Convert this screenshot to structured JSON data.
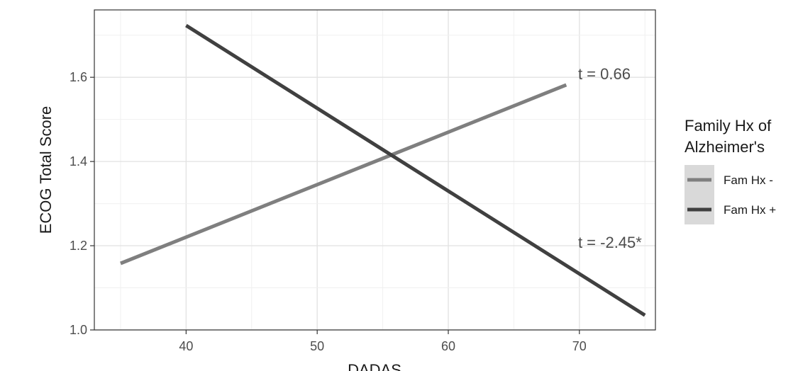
{
  "chart_data": {
    "type": "line",
    "xlabel": "DADAS",
    "ylabel": "ECOG Total Score",
    "xlim": [
      33,
      75.8
    ],
    "ylim": [
      1.0,
      1.76
    ],
    "x_ticks": [
      40,
      50,
      60,
      70
    ],
    "y_ticks": [
      1.0,
      1.2,
      1.4,
      1.6
    ],
    "grid": true,
    "legend": {
      "title_lines": [
        "Family Hx of",
        "Alzheimer's"
      ],
      "placement": "right"
    },
    "series": [
      {
        "name": "Fam Hx -",
        "color": "#7f7f7f",
        "points": [
          [
            35,
            1.158
          ],
          [
            69,
            1.582
          ]
        ]
      },
      {
        "name": "Fam Hx +",
        "color": "#404040",
        "points": [
          [
            40,
            1.723
          ],
          [
            75,
            1.035
          ]
        ]
      }
    ],
    "annotations": [
      {
        "text": "t = 0.66",
        "x": 69.9,
        "y": 1.595
      },
      {
        "text": "t = -2.45*",
        "x": 69.9,
        "y": 1.195
      }
    ]
  }
}
